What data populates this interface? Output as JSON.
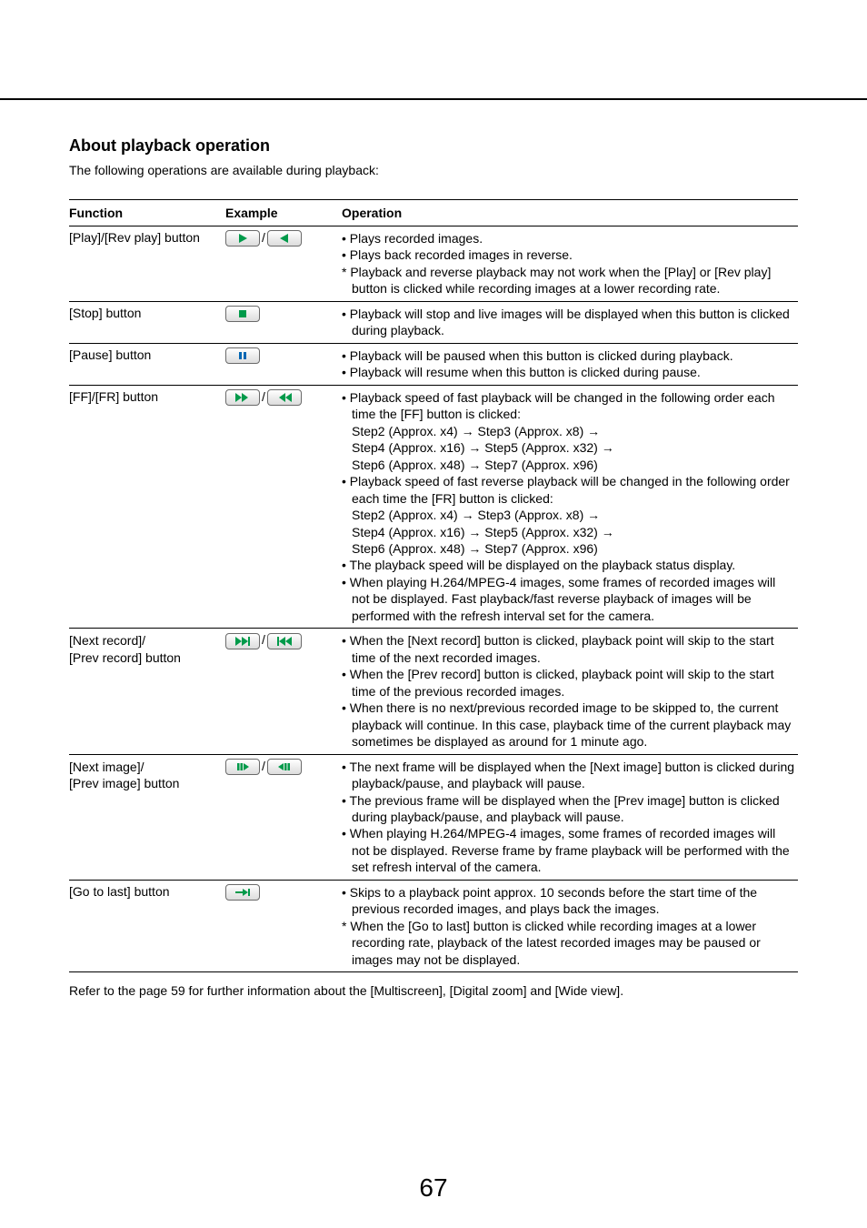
{
  "colors": {
    "text": "#000000",
    "icon_green": "#009a4a",
    "icon_blue": "#0066b3",
    "btn_border": "#6a6a6a",
    "btn_top": "#ffffff",
    "btn_bottom": "#dcdcdc"
  },
  "heading": "About playback operation",
  "intro": "The following operations are available during playback:",
  "headers": {
    "function": "Function",
    "example": "Example",
    "operation": "Operation"
  },
  "rows": [
    {
      "function": "[Play]/[Rev play] button",
      "icons": [
        "play",
        "rev-play"
      ],
      "lines": [
        {
          "t": "bullet",
          "text": "• Plays recorded images."
        },
        {
          "t": "bullet",
          "text": "• Plays back recorded images in reverse."
        },
        {
          "t": "star",
          "text": "* Playback and reverse playback may not work when the [Play] or [Rev play] button is clicked while recording images at a lower recording rate."
        }
      ]
    },
    {
      "function": "[Stop] button",
      "icons": [
        "stop"
      ],
      "lines": [
        {
          "t": "bullet",
          "text": "• Playback will stop and live images will be displayed when this button is clicked during playback."
        }
      ]
    },
    {
      "function": "[Pause] button",
      "icons": [
        "pause"
      ],
      "lines": [
        {
          "t": "bullet",
          "text": "• Playback will be paused when this button is clicked during playback."
        },
        {
          "t": "bullet",
          "text": "• Playback will resume when this button is clicked during pause."
        }
      ]
    },
    {
      "function": "[FF]/[FR] button",
      "icons": [
        "ff",
        "fr"
      ],
      "lines": [
        {
          "t": "bullet",
          "text": "• Playback speed of fast playback will be changed in the following order each time the [FF] button is clicked:"
        },
        {
          "t": "indent",
          "text": "Step2 (Approx. x4) → Step3 (Approx. x8) →"
        },
        {
          "t": "indent",
          "text": "Step4 (Approx. x16) → Step5 (Approx. x32) →"
        },
        {
          "t": "indent",
          "text": "Step6 (Approx. x48) → Step7 (Approx. x96)"
        },
        {
          "t": "bullet",
          "text": "• Playback speed of fast reverse playback will be changed in the following order each time the [FR] button is clicked:"
        },
        {
          "t": "indent",
          "text": "Step2 (Approx. x4) → Step3 (Approx. x8) →"
        },
        {
          "t": "indent",
          "text": "Step4 (Approx. x16) → Step5 (Approx. x32) →"
        },
        {
          "t": "indent",
          "text": "Step6 (Approx. x48) → Step7 (Approx. x96)"
        },
        {
          "t": "bullet",
          "text": "• The playback speed will be displayed on the playback status display."
        },
        {
          "t": "bullet",
          "text": "• When playing H.264/MPEG-4 images, some frames of recorded images will not be displayed. Fast playback/fast reverse playback of images will be performed with the refresh interval set for the camera."
        }
      ]
    },
    {
      "function_lines": [
        "[Next record]/",
        "[Prev record] button"
      ],
      "icons": [
        "next-record",
        "prev-record"
      ],
      "lines": [
        {
          "t": "bullet",
          "text": "• When the [Next record] button is clicked, playback point will skip to the start time of the next recorded images."
        },
        {
          "t": "bullet",
          "text": "• When the [Prev record] button is clicked, playback point will skip to the start time of the previous recorded images."
        },
        {
          "t": "bullet",
          "text": "• When there is no next/previous recorded image to be skipped to, the current playback will continue. In this case, playback time of the current playback may sometimes be displayed as around for 1 minute ago."
        }
      ]
    },
    {
      "function_lines": [
        "[Next image]/",
        "[Prev image] button"
      ],
      "icons": [
        "next-image",
        "prev-image"
      ],
      "lines": [
        {
          "t": "bullet",
          "text": "• The next frame will be displayed when the [Next image] button is clicked during playback/pause, and playback will pause."
        },
        {
          "t": "bullet",
          "text": "• The previous frame will be displayed when the [Prev image] button is clicked during playback/pause, and playback will pause."
        },
        {
          "t": "bullet",
          "text": "• When playing H.264/MPEG-4 images, some frames of recorded images will not be displayed. Reverse frame by frame playback will be performed with the set refresh interval of the camera."
        }
      ]
    },
    {
      "function": "[Go to last] button",
      "icons": [
        "go-to-last"
      ],
      "lines": [
        {
          "t": "bullet",
          "text": "• Skips to a playback point approx. 10 seconds before the start time of the previous recorded images, and plays back the images."
        },
        {
          "t": "star",
          "text": "* When the [Go to last] button is clicked while recording images at a lower recording rate, playback of the latest recorded images may be paused or images may not be displayed."
        }
      ]
    }
  ],
  "footer": "Refer to the page 59 for further information about the [Multiscreen], [Digital zoom] and [Wide view].",
  "page_number": "67"
}
